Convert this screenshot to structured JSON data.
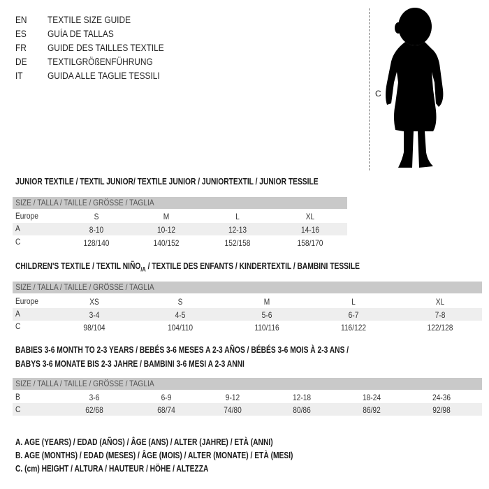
{
  "languages": [
    {
      "code": "EN",
      "title": "TEXTILE SIZE GUIDE"
    },
    {
      "code": "ES",
      "title": "GUÍA DE TALLAS"
    },
    {
      "code": "FR",
      "title": "GUIDE DES TAILLES TEXTILE"
    },
    {
      "code": "DE",
      "title": "TEXTILGRÖßENFÜHRUNG"
    },
    {
      "code": "IT",
      "title": "GUIDA ALLE TAGLIE TESSILI"
    }
  ],
  "figure": {
    "height_label": "C",
    "icon": "child-silhouette"
  },
  "junior": {
    "title": "JUNIOR TEXTILE / TEXTIL JUNIOR/ TEXTILE JUNIOR / JUNIORTEXTIL / JUNIOR TESSILE",
    "header": "SIZE / TALLA / TAILLE / GRÖSSE / TAGLIA",
    "rows": [
      {
        "label": "Europe",
        "values": [
          "S",
          "M",
          "L",
          "XL"
        ]
      },
      {
        "label": "A",
        "values": [
          "8-10",
          "10-12",
          "12-13",
          "14-16"
        ]
      },
      {
        "label": "C",
        "values": [
          "128/140",
          "140/152",
          "152/158",
          "158/170"
        ]
      }
    ]
  },
  "children": {
    "title": "CHILDREN'S TEXTILE / TEXTIL NIÑO",
    "title_sub": "/A",
    "title_rest": " / TEXTILE DES ENFANTS / KINDERTEXTIL / BAMBINI TESSILE",
    "header": "SIZE / TALLA / TAILLE / GRÖSSE / TAGLIA",
    "rows": [
      {
        "label": "Europe",
        "values": [
          "XS",
          "S",
          "M",
          "L",
          "XL"
        ]
      },
      {
        "label": "A",
        "values": [
          "3-4",
          "4-5",
          "5-6",
          "6-7",
          "7-8"
        ]
      },
      {
        "label": "C",
        "values": [
          "98/104",
          "104/110",
          "110/116",
          "116/122",
          "122/128"
        ]
      }
    ]
  },
  "babies": {
    "title_line1": "BABIES 3-6 MONTH TO 2-3 YEARS / BEBÉS 3-6 MESES A 2-3 AÑOS / BÉBÉS 3-6 MOIS À 2-3 ANS /",
    "title_line2": "BABYS 3-6 MONATE BIS 2-3 JAHRE / BAMBINI 3-6 MESI A 2-3 ANNI",
    "header": "SIZE / TALLA / TAILLE / GRÖSSE / TAGLIA",
    "rows": [
      {
        "label": "B",
        "values": [
          "3-6",
          "6-9",
          "9-12",
          "12-18",
          "18-24",
          "24-36"
        ]
      },
      {
        "label": "C",
        "values": [
          "62/68",
          "68/74",
          "74/80",
          "80/86",
          "86/92",
          "92/98"
        ]
      }
    ]
  },
  "legend": [
    "A. AGE (YEARS) / EDAD (AÑOS) / ÂGE (ANS) / ALTER (JAHRE) / ETÀ (ANNI)",
    "B. AGE (MONTHS) / EDAD (MESES) / ÂGE (MOIS) / ALTER (MONATE) / ETÀ (MESI)",
    "C. (cm) HEIGHT / ALTURA / HAUTEUR / HÖHE / ALTEZZA"
  ]
}
